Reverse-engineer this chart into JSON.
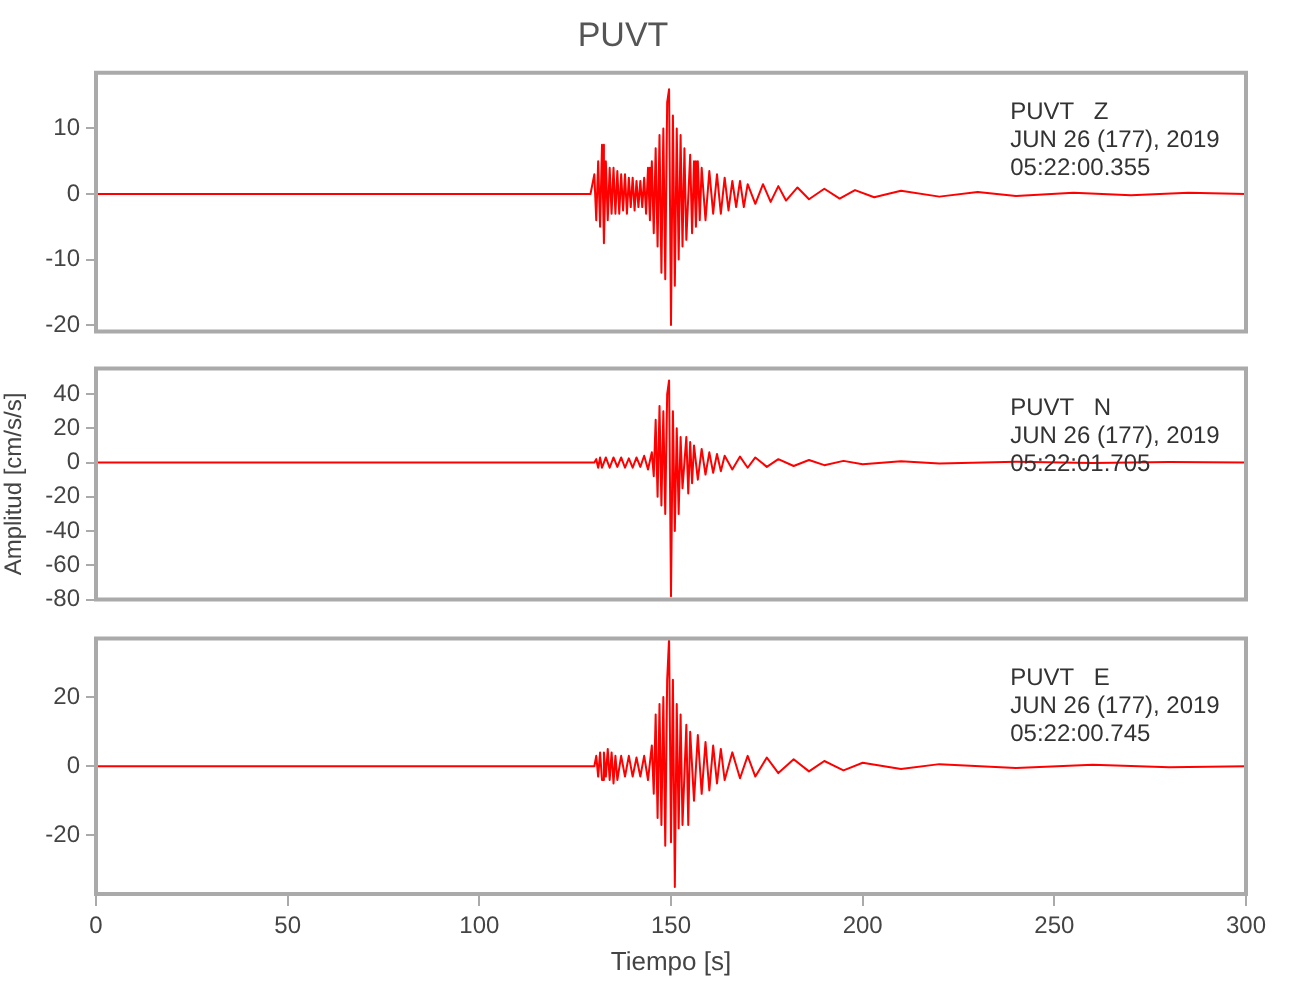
{
  "chart_data": [
    {
      "type": "line",
      "title": "PUVT",
      "color": "#ff0000",
      "xlim": [
        0,
        300
      ],
      "xticks": [
        0,
        50,
        100,
        150,
        200,
        250,
        300
      ],
      "ylim": [
        -21,
        18.5
      ],
      "yticks": [
        -20,
        -10,
        0,
        10
      ],
      "tick_labels": "y",
      "annotations": [
        "PUVT   Z",
        "JUN 26 (177), 2019",
        "05:22:00.355"
      ],
      "x": [
        0,
        50,
        100,
        129,
        130,
        130.5,
        131,
        131.5,
        132,
        132.5,
        133,
        133.5,
        134,
        134.5,
        135,
        135.5,
        136,
        136.5,
        137,
        137.5,
        138,
        138.5,
        139,
        139.5,
        140,
        140.5,
        141,
        141.5,
        142,
        142.5,
        143,
        143.5,
        144,
        144.5,
        145,
        145.5,
        146,
        146.5,
        147,
        147.5,
        148,
        148.5,
        149,
        149.5,
        150,
        150.5,
        151,
        151.5,
        152,
        152.5,
        153,
        153.5,
        154,
        155,
        155.5,
        156,
        156.5,
        157,
        157.5,
        158,
        159,
        160,
        161,
        162,
        163,
        164,
        165,
        166,
        167,
        168,
        169,
        170,
        172,
        174,
        176,
        178,
        180,
        183,
        186,
        190,
        194,
        198,
        203,
        210,
        220,
        230,
        240,
        255,
        270,
        285,
        300
      ],
      "values": [
        0,
        0,
        0,
        0,
        3,
        -4,
        5,
        -5,
        7.5,
        -7.5,
        5,
        -4,
        4,
        -3,
        4,
        -3,
        3.5,
        -3,
        3,
        -2.5,
        3,
        -3,
        2.5,
        -2,
        2.5,
        -2.5,
        2,
        -2,
        2,
        -2,
        2.5,
        -3,
        4,
        -4,
        5,
        -6,
        7,
        -8,
        9,
        -12,
        10,
        -13,
        14,
        16,
        -20,
        12,
        -14,
        10,
        -10,
        9,
        -8,
        7,
        -7,
        6,
        -6,
        5,
        -5,
        5,
        -4,
        4,
        -4,
        3.5,
        -3,
        3,
        -3,
        2.5,
        -2.5,
        2,
        -2,
        2,
        -2,
        1.5,
        -1.5,
        1.5,
        -1.2,
        1.2,
        -1,
        1,
        -0.8,
        0.8,
        -0.7,
        0.6,
        -0.5,
        0.5,
        -0.4,
        0.3,
        -0.3,
        0.2,
        -0.2,
        0.2,
        0
      ]
    },
    {
      "type": "line",
      "ylabel": "Amplitud [cm/s/s]",
      "color": "#ff0000",
      "xlim": [
        0,
        300
      ],
      "xticks": [
        0,
        50,
        100,
        150,
        200,
        250,
        300
      ],
      "ylim": [
        -80,
        55
      ],
      "yticks": [
        -80,
        -60,
        -40,
        -20,
        0,
        20,
        40
      ],
      "tick_labels": "y",
      "annotations": [
        "PUVT   N",
        "JUN 26 (177), 2019",
        "05:22:01.705"
      ],
      "x": [
        0,
        50,
        100,
        130,
        130.5,
        131,
        131.5,
        132,
        133,
        134,
        135,
        136,
        137,
        138,
        139,
        140,
        141,
        142,
        143,
        144,
        145,
        145.5,
        146,
        146.5,
        147,
        147.5,
        148,
        148.5,
        149,
        149.5,
        150,
        150.5,
        151,
        151.5,
        152,
        152.5,
        153,
        154,
        154.5,
        155,
        155.5,
        156,
        157,
        158,
        159,
        160,
        161,
        162,
        163,
        164,
        166,
        168,
        170,
        172,
        175,
        178,
        182,
        186,
        190,
        195,
        200,
        210,
        220,
        240,
        260,
        280,
        300
      ],
      "values": [
        0,
        0,
        0,
        0,
        2,
        -3,
        3,
        -3,
        3,
        -3,
        3,
        -2.5,
        3,
        -3,
        2.5,
        -3,
        3,
        -2.5,
        4,
        -4,
        6,
        -8,
        25,
        -20,
        33,
        -25,
        30,
        -30,
        40,
        48,
        -78,
        30,
        -40,
        20,
        -30,
        15,
        -15,
        15,
        -18,
        12,
        -12,
        10,
        -10,
        8,
        -7,
        6,
        -6,
        5,
        -5,
        4,
        -4,
        3.5,
        -3,
        3,
        -2.5,
        2,
        -2,
        1.5,
        -1.5,
        1,
        -1,
        0.8,
        -0.6,
        0.5,
        -0.3,
        0.3,
        0
      ]
    },
    {
      "type": "line",
      "xlabel": "Tiempo [s]",
      "color": "#ff0000",
      "xlim": [
        0,
        300
      ],
      "xticks": [
        0,
        50,
        100,
        150,
        200,
        250,
        300
      ],
      "ylim": [
        -37,
        37
      ],
      "yticks": [
        -20,
        0,
        20
      ],
      "annotations": [
        "PUVT   E",
        "JUN 26 (177), 2019",
        "05:22:00.745"
      ],
      "x": [
        0,
        50,
        100,
        130,
        130.5,
        131,
        131.5,
        132,
        132.5,
        133,
        133.5,
        134,
        134.5,
        135,
        135.5,
        136,
        137,
        138,
        139,
        140,
        141,
        142,
        143,
        144,
        145,
        145.5,
        146,
        146.5,
        147,
        147.5,
        148,
        148.5,
        149,
        149.5,
        150,
        150.5,
        151,
        151.5,
        152,
        152.5,
        153,
        154,
        154.5,
        155,
        156,
        157,
        158,
        159,
        160,
        161,
        162,
        163,
        164,
        166,
        168,
        170,
        172,
        175,
        178,
        182,
        186,
        190,
        195,
        200,
        210,
        220,
        240,
        260,
        280,
        300
      ],
      "values": [
        0,
        0,
        0,
        0,
        3,
        -3,
        4,
        -4,
        4,
        -3,
        5,
        -4,
        4,
        -5,
        3,
        -4,
        3,
        -3,
        3,
        -3,
        2.5,
        -3,
        3,
        -4,
        6,
        -8,
        15,
        -15,
        18,
        -17,
        20,
        -23,
        25,
        37,
        -22,
        25,
        -35,
        18,
        -18,
        15,
        -17,
        12,
        -17,
        10,
        -10,
        9,
        -8,
        7,
        -7,
        6,
        -5,
        5,
        -4,
        4,
        -3.5,
        3,
        -3,
        2.5,
        -2,
        2,
        -1.5,
        1.5,
        -1.2,
        1,
        -0.8,
        0.6,
        -0.5,
        0.4,
        -0.3,
        0
      ]
    }
  ]
}
